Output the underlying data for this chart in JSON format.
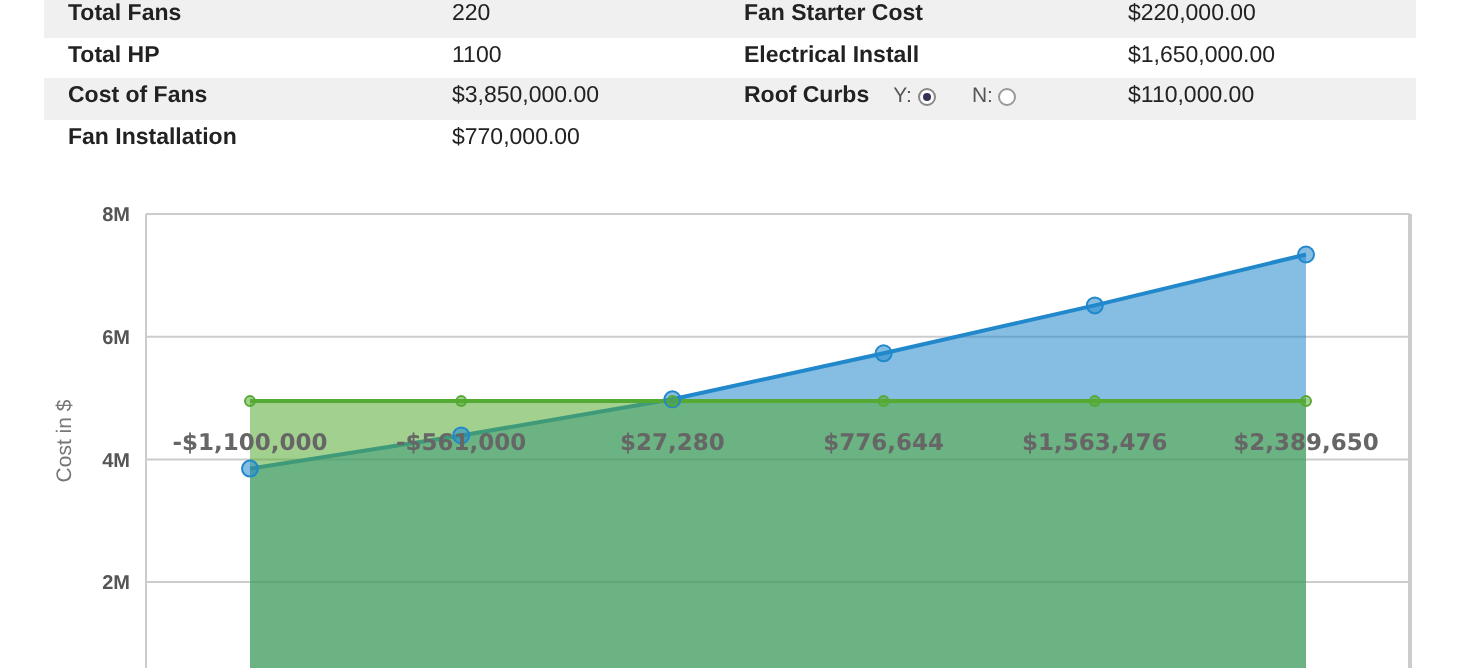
{
  "chart_data": {
    "type": "area",
    "annotations": [
      "Total Fans",
      "220",
      "Fan Starter Cost",
      "$220,000.00",
      "Total HP",
      "1100",
      "Electrical Install",
      "$1,650,000.00",
      "Cost of Fans",
      "$3,850,000.00",
      "Roof Curbs",
      "$110,000.00",
      "Fan Installation",
      "$770,000.00",
      "Y:",
      "N:"
    ],
    "ylabel": "Cost in $",
    "categories": [
      "-$1,100,000",
      "-$561,000",
      "$27,280",
      "$776,644",
      "$1,563,476",
      "$2,389,650"
    ],
    "series": [
      {
        "color": "#2288cc",
        "values": [
          3850000,
          4390000,
          4980000,
          5730000,
          6510000,
          7340000
        ]
      },
      {
        "color": "#55aa33",
        "values": [
          4950000,
          4950000,
          4950000,
          4950000,
          4950000,
          4950000
        ]
      }
    ],
    "ylim": [
      600000,
      8000000
    ],
    "yticks": [
      {
        "value": 2000000,
        "label": "2M"
      },
      {
        "value": 4000000,
        "label": "4M"
      },
      {
        "value": 6000000,
        "label": "6M"
      },
      {
        "value": 8000000,
        "label": "8M"
      }
    ],
    "grid": "y",
    "marker": "circle",
    "legend": false
  }
}
